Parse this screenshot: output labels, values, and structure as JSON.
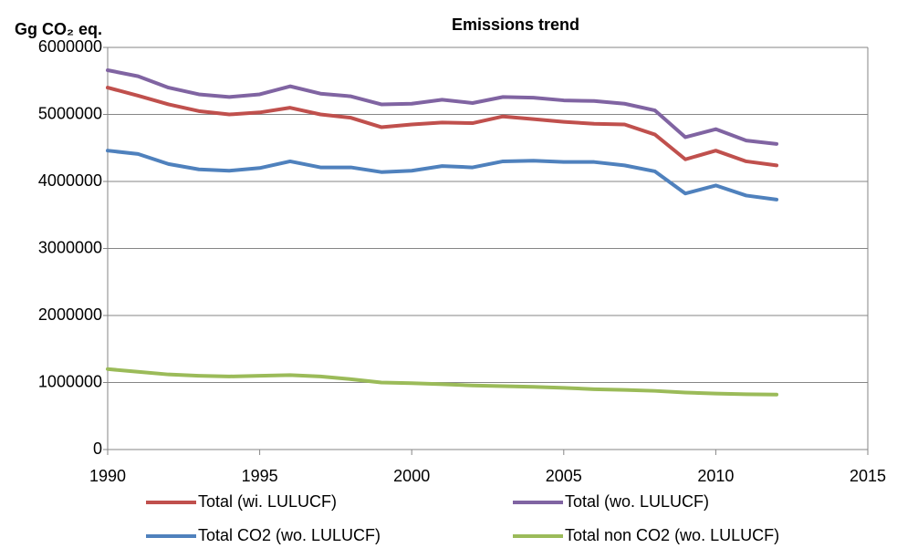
{
  "chart_data": {
    "type": "line",
    "title": "Emissions trend",
    "y_label": "Gg CO₂ eq.",
    "x": [
      1990,
      1991,
      1992,
      1993,
      1994,
      1995,
      1996,
      1997,
      1998,
      1999,
      2000,
      2001,
      2002,
      2003,
      2004,
      2005,
      2006,
      2007,
      2008,
      2009,
      2010,
      2011,
      2012
    ],
    "series": [
      {
        "name": "Total (wi. LULUCF)",
        "color": "#c0504d",
        "values": [
          5400000,
          5280000,
          5150000,
          5050000,
          5000000,
          5030000,
          5100000,
          5000000,
          4950000,
          4810000,
          4850000,
          4880000,
          4870000,
          4970000,
          4930000,
          4890000,
          4860000,
          4850000,
          4700000,
          4330000,
          4460000,
          4300000,
          4240000
        ]
      },
      {
        "name": "Total (wo. LULUCF)",
        "color": "#8064a2",
        "values": [
          5660000,
          5570000,
          5400000,
          5300000,
          5260000,
          5300000,
          5420000,
          5310000,
          5270000,
          5150000,
          5160000,
          5220000,
          5170000,
          5260000,
          5250000,
          5210000,
          5200000,
          5160000,
          5060000,
          4660000,
          4780000,
          4610000,
          4560000
        ]
      },
      {
        "name": "Total CO2 (wo. LULUCF)",
        "color": "#4f81bd",
        "values": [
          4460000,
          4410000,
          4260000,
          4180000,
          4160000,
          4200000,
          4300000,
          4210000,
          4210000,
          4140000,
          4160000,
          4230000,
          4210000,
          4300000,
          4310000,
          4290000,
          4290000,
          4240000,
          4150000,
          3820000,
          3940000,
          3790000,
          3730000
        ]
      },
      {
        "name": "Total non CO2 (wo. LULUCF)",
        "color": "#9bbb59",
        "values": [
          1200000,
          1160000,
          1120000,
          1100000,
          1090000,
          1100000,
          1110000,
          1090000,
          1050000,
          1000000,
          990000,
          975000,
          955000,
          945000,
          935000,
          920000,
          900000,
          890000,
          875000,
          850000,
          835000,
          825000,
          820000
        ]
      }
    ],
    "xlim": [
      1990,
      2015
    ],
    "xticks": [
      1990,
      1995,
      2000,
      2005,
      2010,
      2015
    ],
    "ylim": [
      0,
      6000000
    ],
    "yticks": [
      0,
      1000000,
      2000000,
      3000000,
      4000000,
      5000000,
      6000000
    ],
    "grid": true
  }
}
